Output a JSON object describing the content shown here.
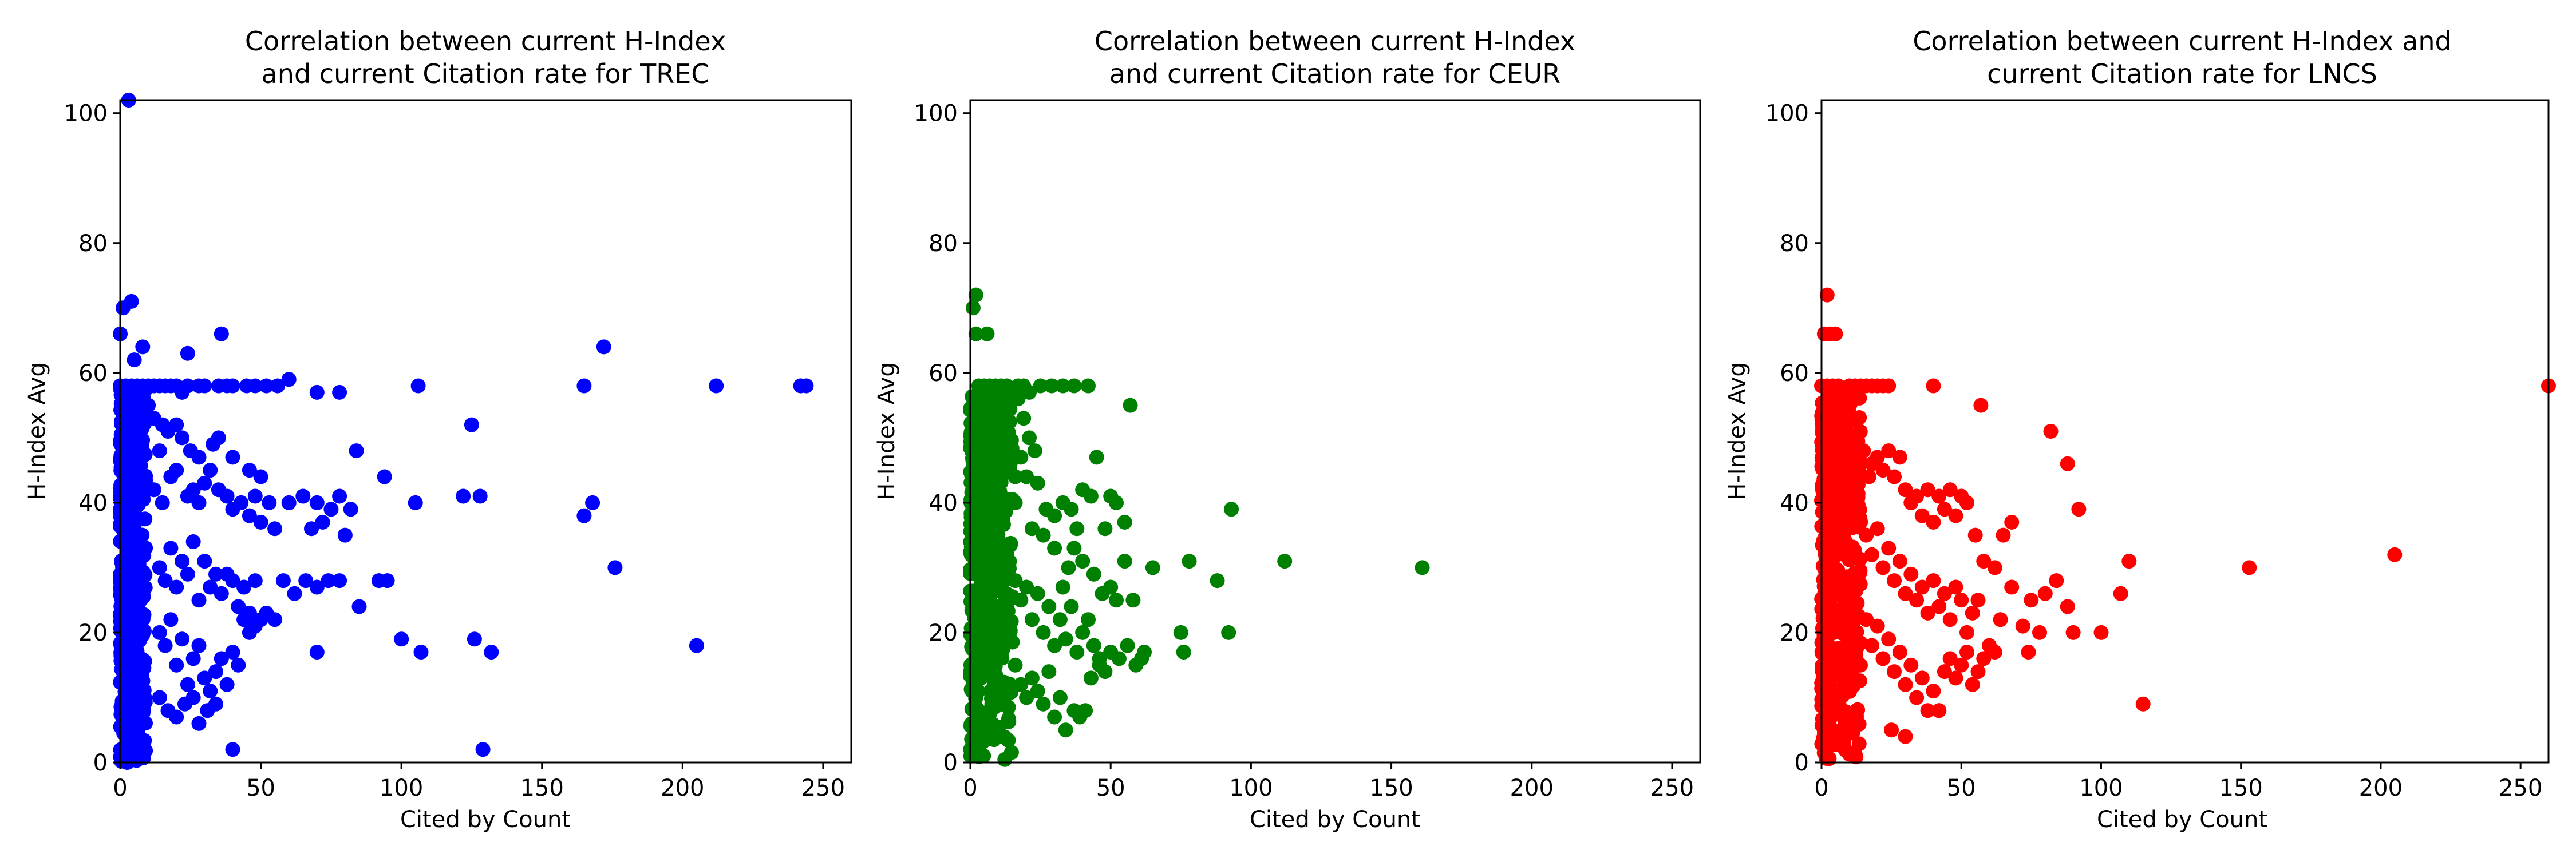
{
  "chart_data": [
    {
      "type": "scatter",
      "title_line1": "Correlation between current H-Index",
      "title_line2": "and current Citation rate for TREC",
      "xlabel": "Cited by Count",
      "ylabel": "H-Index Avg",
      "xlim": [
        0,
        260
      ],
      "ylim": [
        0,
        102
      ],
      "xticks": [
        0,
        50,
        100,
        150,
        200,
        250
      ],
      "yticks": [
        0,
        20,
        40,
        60,
        80,
        100
      ],
      "grid": false,
      "color": "#0000ff",
      "cluster": {
        "x_max": 9,
        "y_min": 0,
        "y_max": 58,
        "count": 420
      },
      "points": [
        [
          3,
          102
        ],
        [
          4,
          71
        ],
        [
          1,
          70
        ],
        [
          0,
          66
        ],
        [
          5,
          62
        ],
        [
          8,
          64
        ],
        [
          0,
          58
        ],
        [
          2,
          58
        ],
        [
          4,
          58
        ],
        [
          6,
          58
        ],
        [
          8,
          58
        ],
        [
          10,
          58
        ],
        [
          12,
          58
        ],
        [
          14,
          58
        ],
        [
          16,
          58
        ],
        [
          18,
          58
        ],
        [
          20,
          58
        ],
        [
          22,
          57
        ],
        [
          24,
          58
        ],
        [
          28,
          58
        ],
        [
          30,
          58
        ],
        [
          35,
          58
        ],
        [
          38,
          58
        ],
        [
          40,
          58
        ],
        [
          45,
          58
        ],
        [
          48,
          58
        ],
        [
          52,
          58
        ],
        [
          56,
          58
        ],
        [
          60,
          59
        ],
        [
          70,
          57
        ],
        [
          78,
          57
        ],
        [
          106,
          58
        ],
        [
          165,
          58
        ],
        [
          212,
          58
        ],
        [
          242,
          58
        ],
        [
          244,
          58
        ],
        [
          24,
          63
        ],
        [
          36,
          66
        ],
        [
          172,
          64
        ],
        [
          125,
          52
        ],
        [
          10,
          55
        ],
        [
          12,
          53
        ],
        [
          15,
          52
        ],
        [
          20,
          52
        ],
        [
          22,
          50
        ],
        [
          17,
          51
        ],
        [
          14,
          48
        ],
        [
          25,
          48
        ],
        [
          28,
          47
        ],
        [
          33,
          49
        ],
        [
          35,
          50
        ],
        [
          40,
          47
        ],
        [
          46,
          45
        ],
        [
          50,
          44
        ],
        [
          84,
          48
        ],
        [
          94,
          44
        ],
        [
          12,
          42
        ],
        [
          15,
          40
        ],
        [
          18,
          44
        ],
        [
          20,
          45
        ],
        [
          24,
          41
        ],
        [
          26,
          42
        ],
        [
          28,
          40
        ],
        [
          30,
          43
        ],
        [
          32,
          45
        ],
        [
          35,
          42
        ],
        [
          38,
          41
        ],
        [
          40,
          39
        ],
        [
          43,
          40
        ],
        [
          46,
          38
        ],
        [
          48,
          41
        ],
        [
          50,
          37
        ],
        [
          53,
          40
        ],
        [
          55,
          36
        ],
        [
          60,
          40
        ],
        [
          65,
          41
        ],
        [
          68,
          36
        ],
        [
          70,
          40
        ],
        [
          72,
          37
        ],
        [
          75,
          39
        ],
        [
          78,
          41
        ],
        [
          80,
          35
        ],
        [
          82,
          39
        ],
        [
          105,
          40
        ],
        [
          122,
          41
        ],
        [
          128,
          41
        ],
        [
          165,
          38
        ],
        [
          168,
          40
        ],
        [
          176,
          30
        ],
        [
          14,
          30
        ],
        [
          16,
          28
        ],
        [
          18,
          33
        ],
        [
          20,
          27
        ],
        [
          22,
          31
        ],
        [
          24,
          29
        ],
        [
          26,
          34
        ],
        [
          28,
          25
        ],
        [
          30,
          31
        ],
        [
          32,
          27
        ],
        [
          34,
          29
        ],
        [
          36,
          26
        ],
        [
          38,
          29
        ],
        [
          40,
          28
        ],
        [
          42,
          24
        ],
        [
          44,
          27
        ],
        [
          46,
          23
        ],
        [
          48,
          28
        ],
        [
          50,
          22
        ],
        [
          52,
          23
        ],
        [
          55,
          22
        ],
        [
          58,
          28
        ],
        [
          62,
          26
        ],
        [
          66,
          28
        ],
        [
          70,
          27
        ],
        [
          74,
          28
        ],
        [
          78,
          28
        ],
        [
          85,
          24
        ],
        [
          92,
          28
        ],
        [
          95,
          28
        ],
        [
          100,
          19
        ],
        [
          107,
          17
        ],
        [
          126,
          19
        ],
        [
          132,
          17
        ],
        [
          14,
          20
        ],
        [
          16,
          18
        ],
        [
          18,
          22
        ],
        [
          20,
          15
        ],
        [
          22,
          19
        ],
        [
          24,
          12
        ],
        [
          26,
          16
        ],
        [
          28,
          18
        ],
        [
          30,
          13
        ],
        [
          32,
          11
        ],
        [
          34,
          14
        ],
        [
          36,
          16
        ],
        [
          38,
          12
        ],
        [
          40,
          17
        ],
        [
          42,
          15
        ],
        [
          44,
          22
        ],
        [
          46,
          20
        ],
        [
          48,
          21
        ],
        [
          14,
          10
        ],
        [
          17,
          8
        ],
        [
          20,
          7
        ],
        [
          23,
          9
        ],
        [
          26,
          10
        ],
        [
          28,
          6
        ],
        [
          31,
          8
        ],
        [
          34,
          9
        ],
        [
          70,
          17
        ],
        [
          205,
          18
        ],
        [
          40,
          2
        ],
        [
          129,
          2
        ]
      ]
    },
    {
      "type": "scatter",
      "title_line1": "Correlation between current H-Index",
      "title_line2": "and current Citation rate for CEUR",
      "xlabel": "Cited by Count",
      "ylabel": "H-Index Avg",
      "xlim": [
        0,
        260
      ],
      "ylim": [
        0,
        102
      ],
      "xticks": [
        0,
        50,
        100,
        150,
        200,
        250
      ],
      "yticks": [
        0,
        20,
        40,
        60,
        80,
        100
      ],
      "grid": false,
      "color": "#008000",
      "cluster": {
        "x_max": 15,
        "y_min": 0,
        "y_max": 57,
        "count": 460
      },
      "points": [
        [
          2,
          72
        ],
        [
          1,
          70
        ],
        [
          2,
          66
        ],
        [
          6,
          66
        ],
        [
          3,
          58
        ],
        [
          5,
          58
        ],
        [
          7,
          58
        ],
        [
          9,
          58
        ],
        [
          11,
          58
        ],
        [
          13,
          58
        ],
        [
          17,
          58
        ],
        [
          19,
          58
        ],
        [
          21,
          57
        ],
        [
          25,
          58
        ],
        [
          29,
          58
        ],
        [
          33,
          58
        ],
        [
          37,
          58
        ],
        [
          42,
          58
        ],
        [
          57,
          55
        ],
        [
          17,
          56
        ],
        [
          19,
          53
        ],
        [
          21,
          50
        ],
        [
          23,
          48
        ],
        [
          18,
          47
        ],
        [
          16,
          44
        ],
        [
          20,
          44
        ],
        [
          24,
          43
        ],
        [
          27,
          39
        ],
        [
          30,
          38
        ],
        [
          33,
          40
        ],
        [
          36,
          39
        ],
        [
          38,
          36
        ],
        [
          40,
          42
        ],
        [
          43,
          41
        ],
        [
          45,
          47
        ],
        [
          48,
          36
        ],
        [
          50,
          41
        ],
        [
          52,
          40
        ],
        [
          55,
          37
        ],
        [
          16,
          40
        ],
        [
          22,
          36
        ],
        [
          26,
          35
        ],
        [
          30,
          33
        ],
        [
          35,
          30
        ],
        [
          33,
          27
        ],
        [
          37,
          33
        ],
        [
          40,
          31
        ],
        [
          44,
          29
        ],
        [
          47,
          26
        ],
        [
          50,
          27
        ],
        [
          52,
          25
        ],
        [
          55,
          31
        ],
        [
          58,
          25
        ],
        [
          61,
          16
        ],
        [
          65,
          30
        ],
        [
          78,
          31
        ],
        [
          93,
          39
        ],
        [
          112,
          31
        ],
        [
          161,
          30
        ],
        [
          16,
          28
        ],
        [
          18,
          25
        ],
        [
          20,
          27
        ],
        [
          22,
          22
        ],
        [
          24,
          26
        ],
        [
          26,
          20
        ],
        [
          28,
          24
        ],
        [
          30,
          18
        ],
        [
          32,
          22
        ],
        [
          34,
          19
        ],
        [
          36,
          24
        ],
        [
          38,
          17
        ],
        [
          40,
          20
        ],
        [
          42,
          22
        ],
        [
          44,
          18
        ],
        [
          46,
          15
        ],
        [
          48,
          14
        ],
        [
          50,
          17
        ],
        [
          53,
          16
        ],
        [
          56,
          18
        ],
        [
          59,
          15
        ],
        [
          62,
          17
        ],
        [
          75,
          20
        ],
        [
          76,
          17
        ],
        [
          88,
          28
        ],
        [
          92,
          20
        ],
        [
          16,
          15
        ],
        [
          18,
          12
        ],
        [
          20,
          10
        ],
        [
          22,
          13
        ],
        [
          24,
          11
        ],
        [
          26,
          9
        ],
        [
          28,
          14
        ],
        [
          30,
          7
        ],
        [
          32,
          10
        ],
        [
          34,
          5
        ],
        [
          37,
          8
        ],
        [
          39,
          7
        ],
        [
          41,
          8
        ],
        [
          43,
          13
        ],
        [
          46,
          16
        ]
      ]
    },
    {
      "type": "scatter",
      "title_line1": "Correlation between current H-Index and",
      "title_line2": "current Citation rate for LNCS",
      "xlabel": "Cited by Count",
      "ylabel": "H-Index Avg",
      "xlim": [
        0,
        260
      ],
      "ylim": [
        0,
        102
      ],
      "xticks": [
        0,
        50,
        100,
        150,
        200,
        250
      ],
      "yticks": [
        0,
        20,
        40,
        60,
        80,
        100
      ],
      "grid": false,
      "color": "#ff0000",
      "cluster": {
        "x_max": 14,
        "y_min": 0,
        "y_max": 57,
        "count": 460
      },
      "points": [
        [
          2,
          72
        ],
        [
          1,
          66
        ],
        [
          3,
          66
        ],
        [
          5,
          66
        ],
        [
          0,
          58
        ],
        [
          2,
          58
        ],
        [
          4,
          58
        ],
        [
          6,
          58
        ],
        [
          8,
          57
        ],
        [
          10,
          58
        ],
        [
          12,
          58
        ],
        [
          14,
          58
        ],
        [
          16,
          58
        ],
        [
          18,
          58
        ],
        [
          20,
          58
        ],
        [
          22,
          58
        ],
        [
          24,
          58
        ],
        [
          40,
          58
        ],
        [
          57,
          55
        ],
        [
          260,
          58
        ],
        [
          15,
          48
        ],
        [
          18,
          46
        ],
        [
          20,
          47
        ],
        [
          22,
          45
        ],
        [
          24,
          48
        ],
        [
          26,
          44
        ],
        [
          28,
          47
        ],
        [
          17,
          44
        ],
        [
          30,
          42
        ],
        [
          32,
          40
        ],
        [
          34,
          41
        ],
        [
          36,
          38
        ],
        [
          38,
          42
        ],
        [
          40,
          37
        ],
        [
          42,
          41
        ],
        [
          44,
          39
        ],
        [
          46,
          42
        ],
        [
          48,
          38
        ],
        [
          50,
          41
        ],
        [
          52,
          40
        ],
        [
          55,
          35
        ],
        [
          58,
          31
        ],
        [
          62,
          30
        ],
        [
          65,
          35
        ],
        [
          68,
          37
        ],
        [
          82,
          51
        ],
        [
          88,
          46
        ],
        [
          92,
          39
        ],
        [
          16,
          35
        ],
        [
          18,
          32
        ],
        [
          20,
          36
        ],
        [
          22,
          30
        ],
        [
          24,
          33
        ],
        [
          26,
          28
        ],
        [
          28,
          31
        ],
        [
          30,
          26
        ],
        [
          32,
          29
        ],
        [
          34,
          25
        ],
        [
          36,
          27
        ],
        [
          38,
          23
        ],
        [
          40,
          28
        ],
        [
          42,
          24
        ],
        [
          44,
          26
        ],
        [
          46,
          22
        ],
        [
          48,
          27
        ],
        [
          50,
          25
        ],
        [
          52,
          20
        ],
        [
          54,
          23
        ],
        [
          56,
          25
        ],
        [
          60,
          18
        ],
        [
          64,
          22
        ],
        [
          68,
          27
        ],
        [
          72,
          21
        ],
        [
          75,
          25
        ],
        [
          78,
          20
        ],
        [
          80,
          26
        ],
        [
          84,
          28
        ],
        [
          88,
          24
        ],
        [
          90,
          20
        ],
        [
          100,
          20
        ],
        [
          107,
          26
        ],
        [
          110,
          31
        ],
        [
          115,
          9
        ],
        [
          153,
          30
        ],
        [
          205,
          32
        ],
        [
          16,
          22
        ],
        [
          18,
          18
        ],
        [
          20,
          21
        ],
        [
          22,
          16
        ],
        [
          24,
          19
        ],
        [
          26,
          14
        ],
        [
          28,
          17
        ],
        [
          30,
          12
        ],
        [
          32,
          15
        ],
        [
          34,
          10
        ],
        [
          36,
          13
        ],
        [
          38,
          8
        ],
        [
          40,
          11
        ],
        [
          42,
          8
        ],
        [
          44,
          14
        ],
        [
          46,
          16
        ],
        [
          48,
          13
        ],
        [
          50,
          15
        ],
        [
          52,
          17
        ],
        [
          54,
          12
        ],
        [
          56,
          14
        ],
        [
          58,
          16
        ],
        [
          62,
          17
        ],
        [
          74,
          17
        ],
        [
          25,
          5
        ],
        [
          30,
          4
        ],
        [
          42,
          8
        ]
      ]
    }
  ]
}
